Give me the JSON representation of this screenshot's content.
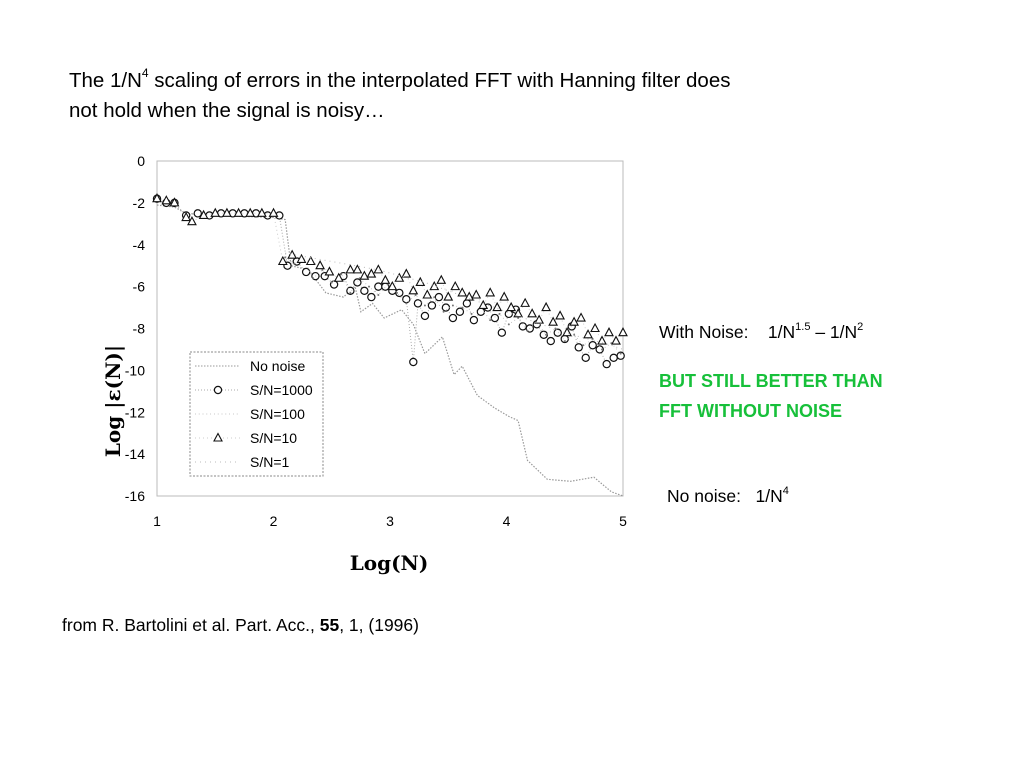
{
  "title": {
    "part1": "The 1/N",
    "sup": "4",
    "part2": " scaling of errors in the interpolated FFT with Hanning filter does",
    "line2": "not hold when the signal is noisy…"
  },
  "notes": {
    "with_noise_label": "With Noise:",
    "with_noise_expr_a": "1/N",
    "with_noise_sup_a": "1.5",
    "with_noise_dash": " – ",
    "with_noise_expr_b": "1/N",
    "with_noise_sup_b": "2",
    "green_line1": "BUT STILL BETTER THAN",
    "green_line2": "FFT WITHOUT NOISE",
    "no_noise_label": "No noise:",
    "no_noise_expr": "1/N",
    "no_noise_sup": "4"
  },
  "citation": {
    "text_before": "from R. Bartolini et al. Part. Acc., ",
    "volume": "55",
    "text_after": ", 1, (1996)"
  },
  "colors": {
    "green_text": "#17c03a"
  },
  "chart_data": {
    "type": "line",
    "xlabel": "Log(N)",
    "ylabel": "Log |ε(N)|",
    "xlim": [
      1,
      5
    ],
    "ylim": [
      -16,
      0
    ],
    "x_ticks": [
      "1",
      "2",
      "3",
      "4",
      "5"
    ],
    "y_ticks": [
      "0",
      "-2",
      "-4",
      "-6",
      "-8",
      "-10",
      "-12",
      "-14",
      "-16"
    ],
    "legend_position": "lower-left",
    "series": [
      {
        "name": "No noise",
        "marker": "none",
        "x": [
          1.0,
          1.15,
          1.25,
          1.5,
          2.0,
          2.1,
          2.15,
          2.3,
          2.45,
          2.6,
          2.7,
          2.75,
          2.85,
          2.95,
          3.1,
          3.2,
          3.3,
          3.45,
          3.55,
          3.62,
          3.75,
          3.9,
          4.02,
          4.1,
          4.18,
          4.35,
          4.55,
          4.75,
          4.9,
          5.0
        ],
        "y": [
          -2.1,
          -2.2,
          -2.5,
          -2.6,
          -2.7,
          -2.8,
          -5.0,
          -5.2,
          -6.3,
          -6.5,
          -6.0,
          -7.2,
          -6.8,
          -7.5,
          -7.1,
          -7.8,
          -9.2,
          -8.4,
          -10.2,
          -9.8,
          -11.2,
          -11.8,
          -12.2,
          -12.4,
          -14.3,
          -15.2,
          -15.3,
          -15.1,
          -15.8,
          -16.0
        ]
      },
      {
        "name": "S/N=1000",
        "marker": "circle",
        "x": [
          1.0,
          1.08,
          1.15,
          1.25,
          1.35,
          1.45,
          1.55,
          1.65,
          1.75,
          1.85,
          1.95,
          2.05,
          2.12,
          2.2,
          2.28,
          2.36,
          2.44,
          2.52,
          2.6,
          2.66,
          2.72,
          2.78,
          2.84,
          2.9,
          2.96,
          3.02,
          3.08,
          3.14,
          3.2,
          3.24,
          3.3,
          3.36,
          3.42,
          3.48,
          3.54,
          3.6,
          3.66,
          3.72,
          3.78,
          3.84,
          3.9,
          3.96,
          4.02,
          4.08,
          4.14,
          4.2,
          4.26,
          4.32,
          4.38,
          4.44,
          4.5,
          4.56,
          4.62,
          4.68,
          4.74,
          4.8,
          4.86,
          4.92,
          4.98
        ],
        "y": [
          -1.8,
          -2.0,
          -2.0,
          -2.6,
          -2.5,
          -2.6,
          -2.5,
          -2.5,
          -2.5,
          -2.5,
          -2.6,
          -2.6,
          -5.0,
          -4.8,
          -5.3,
          -5.5,
          -5.5,
          -5.9,
          -5.5,
          -6.2,
          -5.8,
          -6.2,
          -6.5,
          -6.0,
          -6.0,
          -6.2,
          -6.3,
          -6.6,
          -9.6,
          -6.8,
          -7.4,
          -6.9,
          -6.5,
          -7.0,
          -7.5,
          -7.2,
          -6.8,
          -7.6,
          -7.2,
          -7.0,
          -7.5,
          -8.2,
          -7.3,
          -7.1,
          -7.9,
          -8.0,
          -7.8,
          -8.3,
          -8.6,
          -8.2,
          -8.5,
          -7.9,
          -8.9,
          -9.4,
          -8.8,
          -9.0,
          -9.7,
          -9.4,
          -9.3
        ]
      },
      {
        "name": "S/N=100",
        "marker": "small",
        "x": [
          2.1,
          2.18,
          2.26,
          2.34,
          2.42,
          2.5,
          2.58,
          2.66,
          2.74,
          2.82,
          2.9,
          2.98,
          3.06,
          3.14,
          3.22,
          3.3,
          3.38,
          3.46,
          3.54,
          3.62,
          3.7,
          3.78,
          3.86,
          3.94,
          4.02,
          4.1,
          4.18,
          4.26,
          4.34,
          4.42,
          4.5,
          4.58,
          4.66,
          4.74,
          4.82,
          4.9,
          4.98
        ],
        "y": [
          -4.6,
          -4.9,
          -4.7,
          -5.6,
          -5.2,
          -5.8,
          -5.4,
          -6.3,
          -5.6,
          -6.0,
          -6.4,
          -5.9,
          -6.3,
          -6.8,
          -6.4,
          -6.9,
          -6.5,
          -7.2,
          -6.9,
          -7.0,
          -7.3,
          -7.0,
          -7.6,
          -7.3,
          -7.8,
          -7.5,
          -8.1,
          -7.7,
          -8.3,
          -8.0,
          -8.6,
          -8.3,
          -8.8,
          -8.5,
          -9.0,
          -8.7,
          -9.2
        ]
      },
      {
        "name": "S/N=10",
        "marker": "triangle",
        "x": [
          1.0,
          1.08,
          1.15,
          1.25,
          1.3,
          1.4,
          1.5,
          1.6,
          1.7,
          1.8,
          1.9,
          2.0,
          2.08,
          2.16,
          2.24,
          2.32,
          2.4,
          2.48,
          2.56,
          2.66,
          2.72,
          2.78,
          2.84,
          2.9,
          2.96,
          3.02,
          3.08,
          3.14,
          3.2,
          3.26,
          3.32,
          3.38,
          3.44,
          3.5,
          3.56,
          3.62,
          3.68,
          3.74,
          3.8,
          3.86,
          3.92,
          3.98,
          4.04,
          4.1,
          4.16,
          4.22,
          4.28,
          4.34,
          4.4,
          4.46,
          4.52,
          4.58,
          4.64,
          4.7,
          4.76,
          4.82,
          4.88,
          4.94,
          5.0
        ],
        "y": [
          -1.8,
          -1.9,
          -2.0,
          -2.7,
          -2.9,
          -2.6,
          -2.5,
          -2.5,
          -2.5,
          -2.5,
          -2.5,
          -2.5,
          -4.8,
          -4.5,
          -4.7,
          -4.8,
          -5.0,
          -5.3,
          -5.6,
          -5.2,
          -5.2,
          -5.5,
          -5.4,
          -5.2,
          -5.7,
          -6.0,
          -5.6,
          -5.4,
          -6.2,
          -5.8,
          -6.4,
          -6.0,
          -5.7,
          -6.5,
          -6.0,
          -6.3,
          -6.5,
          -6.4,
          -6.9,
          -6.3,
          -7.0,
          -6.5,
          -7.0,
          -7.3,
          -6.8,
          -7.3,
          -7.6,
          -7.0,
          -7.7,
          -7.4,
          -8.2,
          -7.7,
          -7.5,
          -8.3,
          -8.0,
          -8.6,
          -8.2,
          -8.6,
          -8.2
        ]
      },
      {
        "name": "S/N=1",
        "marker": "none",
        "x": [
          2.1,
          2.3,
          2.5,
          2.7,
          2.9,
          3.1,
          3.3,
          3.5,
          3.7,
          3.9,
          4.1,
          4.3,
          4.5,
          4.7,
          4.9,
          5.0
        ],
        "y": [
          -4.4,
          -4.6,
          -4.8,
          -5.0,
          -5.2,
          -5.5,
          -5.8,
          -6.2,
          -6.6,
          -7.0,
          -7.4,
          -7.8,
          -8.2,
          -8.5,
          -8.8,
          -9.0
        ]
      }
    ]
  }
}
